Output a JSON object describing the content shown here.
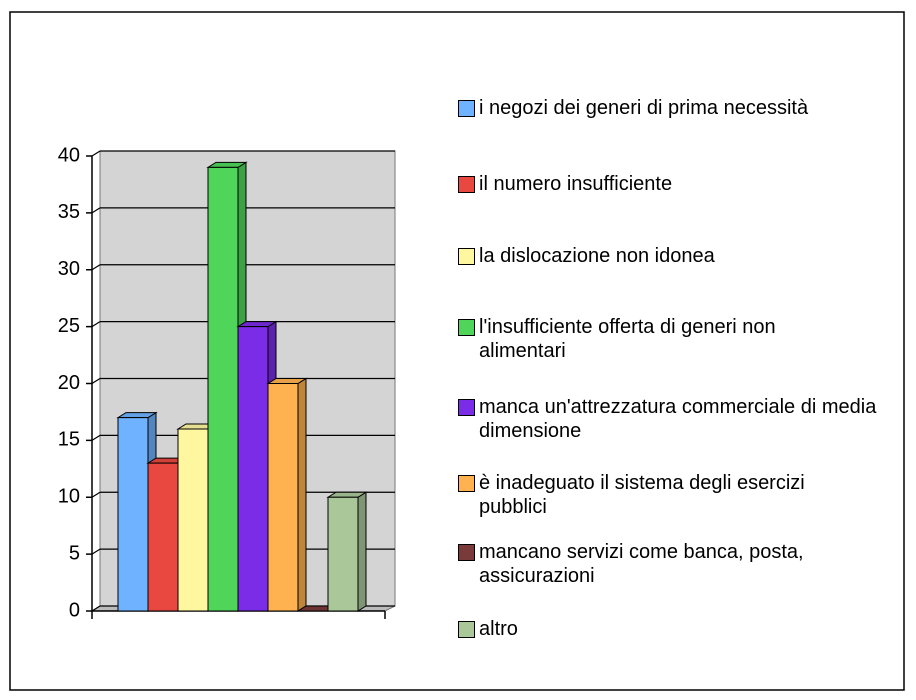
{
  "chart_data": {
    "type": "bar",
    "series": [
      {
        "name": "i negozi dei generi di prima necessità",
        "color": "#6fb2ff",
        "values": [
          17
        ]
      },
      {
        "name": "il numero insufficiente",
        "color": "#e8483f",
        "values": [
          13
        ]
      },
      {
        "name": "la dislocazione non idonea",
        "color": "#fff7a0",
        "values": [
          16
        ]
      },
      {
        "name": "l'insufficiente offerta di generi non alimentari",
        "color": "#4fd65a",
        "values": [
          39
        ]
      },
      {
        "name": "manca un'attrezzatura commerciale di media dimensione",
        "color": "#7a2ce6",
        "values": [
          25
        ]
      },
      {
        "name": "è inadeguato il sistema degli esercizi pubblici",
        "color": "#ffb24f",
        "values": [
          20
        ]
      },
      {
        "name": "mancano servizi come banca, posta, assicurazioni",
        "color": "#7a3a3a",
        "values": [
          0
        ]
      },
      {
        "name": "altro",
        "color": "#aac79a",
        "values": [
          10
        ]
      }
    ],
    "ylim": [
      0,
      40
    ],
    "yticks": [
      0,
      5,
      10,
      15,
      20,
      25,
      30,
      35,
      40
    ],
    "grid": true,
    "legend": "right"
  }
}
